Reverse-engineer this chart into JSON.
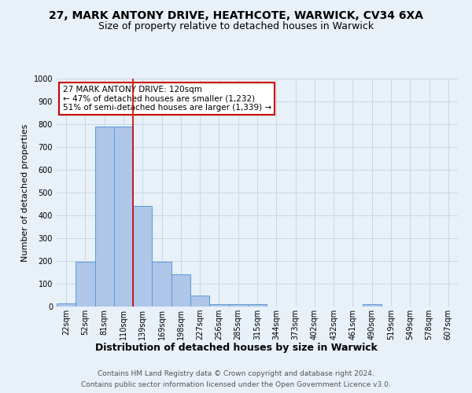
{
  "title1": "27, MARK ANTONY DRIVE, HEATHCOTE, WARWICK, CV34 6XA",
  "title2": "Size of property relative to detached houses in Warwick",
  "xlabel": "Distribution of detached houses by size in Warwick",
  "ylabel": "Number of detached properties",
  "footnote1": "Contains HM Land Registry data © Crown copyright and database right 2024.",
  "footnote2": "Contains public sector information licensed under the Open Government Licence v3.0.",
  "annotation_line1": "27 MARK ANTONY DRIVE: 120sqm",
  "annotation_line2": "← 47% of detached houses are smaller (1,232)",
  "annotation_line3": "51% of semi-detached houses are larger (1,339) →",
  "bar_labels": [
    "22sqm",
    "52sqm",
    "81sqm",
    "110sqm",
    "139sqm",
    "169sqm",
    "198sqm",
    "227sqm",
    "256sqm",
    "285sqm",
    "315sqm",
    "344sqm",
    "373sqm",
    "402sqm",
    "432sqm",
    "461sqm",
    "490sqm",
    "519sqm",
    "549sqm",
    "578sqm",
    "607sqm"
  ],
  "bar_values": [
    15,
    195,
    790,
    790,
    440,
    195,
    143,
    48,
    12,
    10,
    10,
    0,
    0,
    0,
    0,
    0,
    10,
    0,
    0,
    0,
    0
  ],
  "bar_color": "#aec6e8",
  "bar_edge_color": "#5b9bd5",
  "redline_index": 3,
  "ylim": [
    0,
    1000
  ],
  "yticks": [
    0,
    100,
    200,
    300,
    400,
    500,
    600,
    700,
    800,
    900,
    1000
  ],
  "annotation_box_color": "#ffffff",
  "annotation_box_edge": "#cc0000",
  "redline_color": "#cc0000",
  "grid_color": "#c8d8e8",
  "bg_color": "#e8f0f8",
  "title1_fontsize": 10,
  "title2_fontsize": 9,
  "xlabel_fontsize": 9,
  "ylabel_fontsize": 8,
  "tick_fontsize": 7,
  "ann_fontsize": 7.5,
  "footnote_fontsize": 6.5
}
